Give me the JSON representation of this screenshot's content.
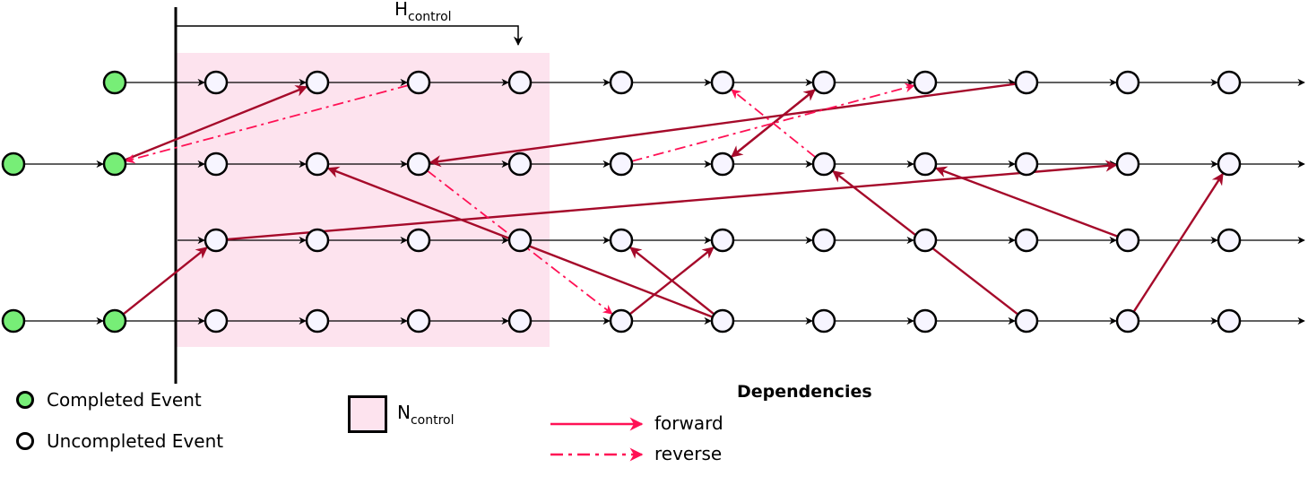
{
  "colors": {
    "completed_fill": "#77ee77",
    "uncompleted_fill": "#f7f5ff",
    "control_region": "#fde3ee",
    "dependency_arrow": "#a50a2a",
    "legend_arrow": "#ff1155"
  },
  "labels": {
    "h_control": "H",
    "h_control_sub": "control",
    "n_control": "N",
    "n_control_sub": "control",
    "completed_event": "Completed Event",
    "uncompleted_event": "Uncompleted Event",
    "dependencies_title": "Dependencies",
    "forward": "forward",
    "reverse": "reverse"
  },
  "rows": [
    {
      "events": [
        "done",
        "",
        "",
        "",
        "",
        "",
        "",
        "",
        "",
        "",
        "",
        ""
      ]
    },
    {
      "events": [
        "done",
        "done",
        "",
        "",
        "",
        "",
        "",
        "",
        "",
        "",
        "",
        "",
        ""
      ]
    },
    {
      "events": [
        "",
        "",
        "",
        "",
        "",
        "",
        "",
        "",
        "",
        "",
        ""
      ]
    },
    {
      "events": [
        "done",
        "done",
        "",
        "",
        "",
        "",
        "",
        "",
        "",
        "",
        "",
        "",
        ""
      ]
    }
  ],
  "dependencies": [
    {
      "from": [
        1,
        1
      ],
      "to": [
        0,
        3
      ],
      "style": "forward"
    },
    {
      "from": [
        0,
        4
      ],
      "to": [
        1,
        1
      ],
      "style": "reverse"
    },
    {
      "from": [
        3,
        1
      ],
      "to": [
        2,
        2
      ],
      "style": "forward"
    },
    {
      "from": [
        2,
        2
      ],
      "to": [
        1,
        11
      ],
      "style": "forward"
    },
    {
      "from": [
        1,
        4
      ],
      "to": [
        3,
        6
      ],
      "style": "reverse"
    },
    {
      "from": [
        3,
        6
      ],
      "to": [
        2,
        7
      ],
      "style": "forward"
    },
    {
      "from": [
        3,
        7
      ],
      "to": [
        2,
        6
      ],
      "style": "forward"
    },
    {
      "from": [
        3,
        7
      ],
      "to": [
        1,
        3
      ],
      "style": "forward"
    },
    {
      "from": [
        0,
        10
      ],
      "to": [
        1,
        4
      ],
      "style": "forward"
    },
    {
      "from": [
        1,
        7
      ],
      "to": [
        0,
        8
      ],
      "style": "forward"
    },
    {
      "from": [
        0,
        8
      ],
      "to": [
        1,
        7
      ],
      "style": "forward"
    },
    {
      "from": [
        1,
        6
      ],
      "to": [
        0,
        9
      ],
      "style": "reverse"
    },
    {
      "from": [
        1,
        8
      ],
      "to": [
        0,
        7
      ],
      "style": "reverse"
    },
    {
      "from": [
        3,
        10
      ],
      "to": [
        1,
        8
      ],
      "style": "forward"
    },
    {
      "from": [
        2,
        11
      ],
      "to": [
        1,
        9
      ],
      "style": "forward"
    },
    {
      "from": [
        3,
        11
      ],
      "to": [
        1,
        12
      ],
      "style": "forward"
    }
  ]
}
